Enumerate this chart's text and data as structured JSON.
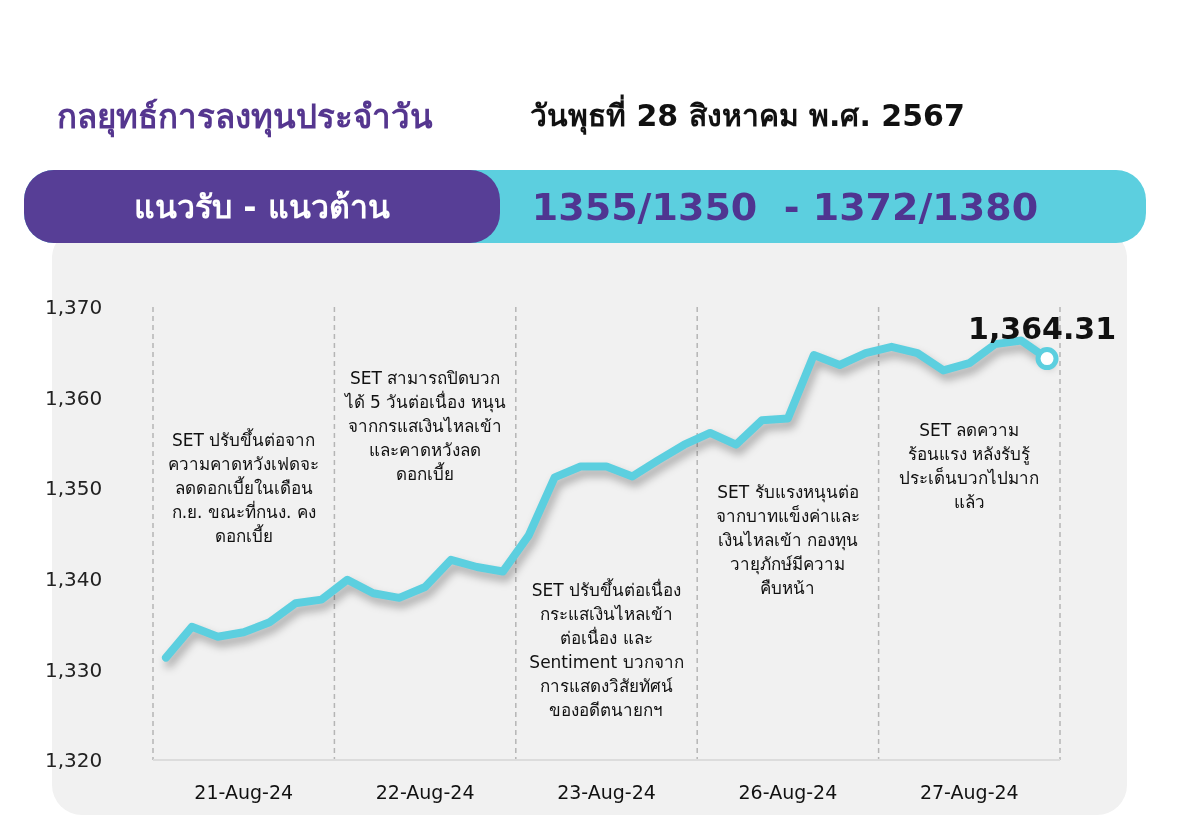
{
  "chart_data": {
    "type": "line",
    "title": "กลยุทธ์การลงทุนประจำวัน",
    "subtitle": "วันพุธที่ 28 สิงหาคม พ.ศ. 2567",
    "annotations": [
      "แนวรับ - แนวต้าน",
      "1355/1350  - 1372/1380",
      "SET ปรับขึ้นต่อจาก\nความคาดหวังเฟดจะ\nลดดอกเบี้ยในเดือน\nก.ย. ขณะที่กนง. คง\nดอกเบี้ย",
      "SET สามารถปิดบวก\nได้ 5 วันต่อเนื่อง หนุน\nจากกรแสเงินไหลเข้า\nและคาดหวังลด\nดอกเบี้ย",
      "SET ปรับขึ้นต่อเนื่อง\nกระแสเงินไหลเข้า\nต่อเนื่อง และ\nSentiment บวกจาก\nการแสดงวิสัยทัศน์\nของอดีตนายกฯ",
      "SET รับแรงหนุนต่อ\nจากบาทแข็งค่าและ\nเงินไหลเข้า กองทุน\nวายุภักษ์มีความ\nคืบหน้า",
      "SET ลดความ\nร้อนแรง หลังรับรู้\nประเด็นบวกไปมาก\nแล้ว"
    ],
    "categories": [
      null,
      null,
      null,
      "21-Aug-24",
      null,
      null,
      null,
      null,
      null,
      null,
      "22-Aug-24",
      null,
      null,
      null,
      null,
      null,
      null,
      "23-Aug-24",
      null,
      null,
      null,
      null,
      null,
      null,
      "26-Aug-24",
      null,
      null,
      null,
      null,
      null,
      null,
      "27-Aug-24",
      null,
      null,
      null
    ],
    "values": [
      1331.3,
      1334.7,
      1333.6,
      1334.1,
      1335.2,
      1337.3,
      1337.7,
      1339.9,
      1338.4,
      1337.9,
      1339.1,
      1342.1,
      1341.3,
      1340.8,
      1344.8,
      1351.2,
      1352.4,
      1352.4,
      1351.3,
      1353.1,
      1354.8,
      1356.1,
      1354.8,
      1357.5,
      1357.7,
      1364.7,
      1363.6,
      1364.9,
      1365.6,
      1364.9,
      1363.0,
      1363.8,
      1365.9,
      1366.3,
      1364.31
    ],
    "value_labels": [
      null,
      null,
      null,
      null,
      null,
      null,
      null,
      null,
      null,
      null,
      null,
      null,
      null,
      null,
      null,
      null,
      null,
      null,
      null,
      null,
      null,
      null,
      null,
      null,
      null,
      null,
      null,
      null,
      null,
      null,
      null,
      null,
      null,
      null,
      "1,364.31"
    ],
    "color": "#5ccfdf",
    "ylim": [
      1320,
      1370
    ],
    "yticks": [
      {
        "value": 1320,
        "label": "1,320"
      },
      {
        "value": 1330,
        "label": "1,330"
      },
      {
        "value": 1340,
        "label": "1,340"
      },
      {
        "value": 1350,
        "label": "1,350"
      },
      {
        "value": 1360,
        "label": "1,360"
      },
      {
        "value": 1370,
        "label": "1,370"
      }
    ],
    "grid": false,
    "legend": false,
    "marker": "none",
    "line_style": "solid"
  }
}
